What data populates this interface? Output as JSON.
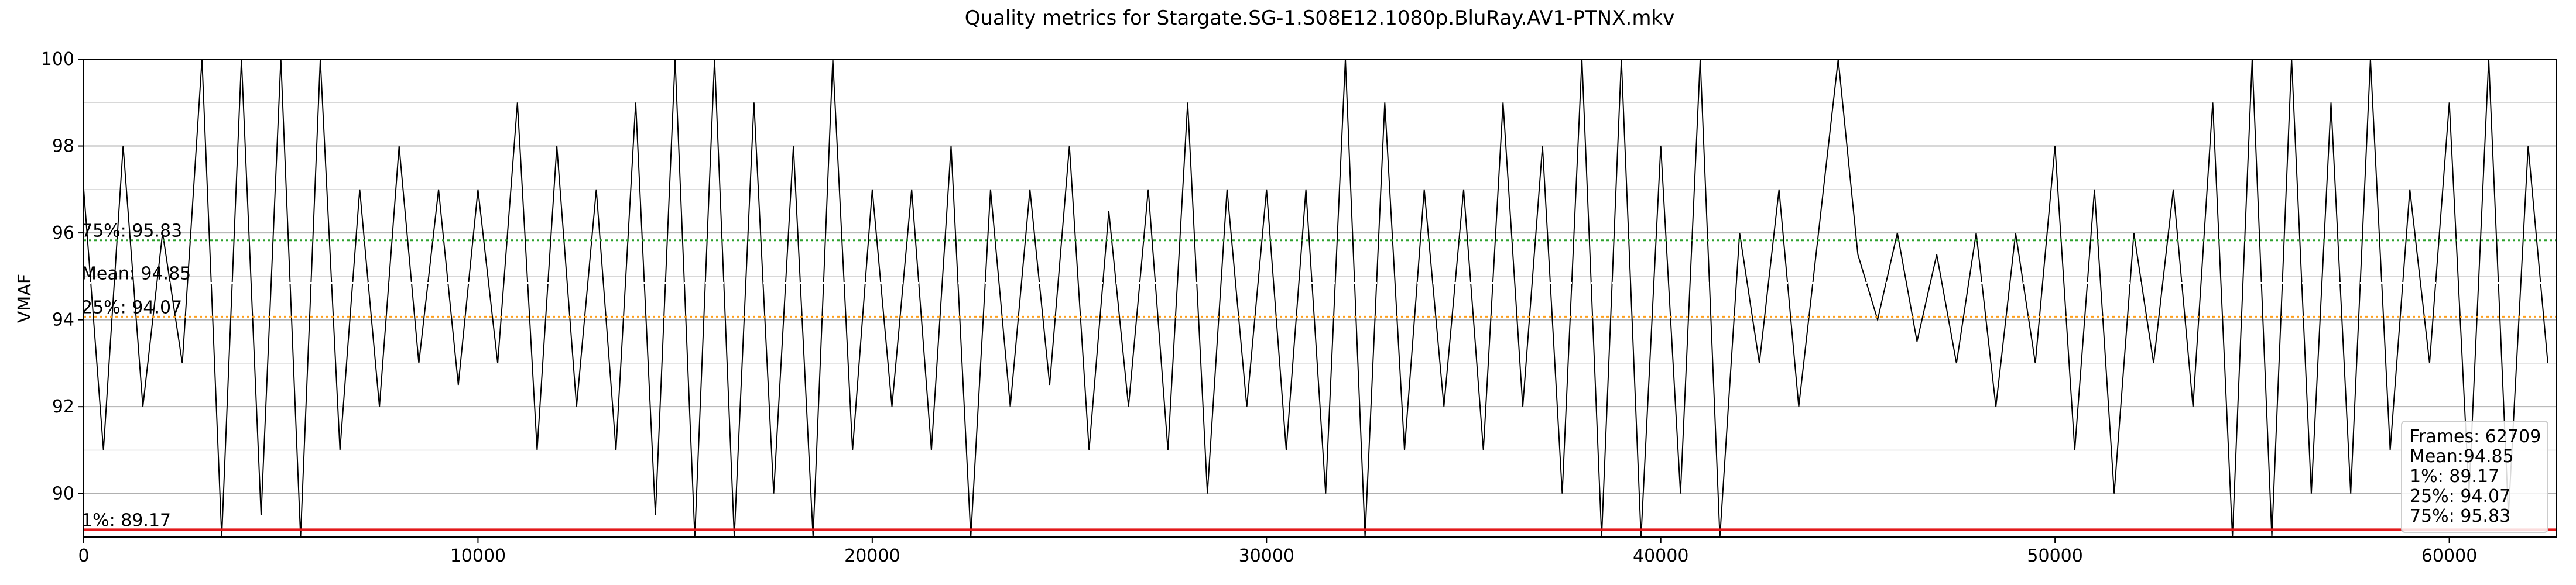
{
  "chart_data": {
    "type": "line",
    "title": "Quality metrics for Stargate.SG-1.S08E12.1080p.BluRay.AV1-PTNX.mkv",
    "y_label": "VMAF",
    "color": "#000000",
    "x": [
      0,
      500,
      1000,
      1500,
      2000,
      2500,
      3000,
      3500,
      4000,
      4500,
      5000,
      5500,
      6000,
      6500,
      7000,
      7500,
      8000,
      8500,
      9000,
      9500,
      10000,
      10500,
      11000,
      11500,
      12000,
      12500,
      13000,
      13500,
      14000,
      14500,
      15000,
      15500,
      16000,
      16500,
      17000,
      17500,
      18000,
      18500,
      19000,
      19500,
      20000,
      20500,
      21000,
      21500,
      22000,
      22500,
      23000,
      23500,
      24000,
      24500,
      25000,
      25500,
      26000,
      26500,
      27000,
      27500,
      28000,
      28500,
      29000,
      29500,
      30000,
      30500,
      31000,
      31500,
      32000,
      32500,
      33000,
      33500,
      34000,
      34500,
      35000,
      35500,
      36000,
      36500,
      37000,
      37500,
      38000,
      38500,
      39000,
      39500,
      40000,
      40500,
      41000,
      41500,
      42000,
      42500,
      43000,
      43500,
      44000,
      44500,
      45000,
      45500,
      46000,
      46500,
      47000,
      47500,
      48000,
      48500,
      49000,
      49500,
      50000,
      50500,
      51000,
      51500,
      52000,
      52500,
      53000,
      53500,
      54000,
      54500,
      55000,
      55500,
      56000,
      56500,
      57000,
      57500,
      58000,
      58500,
      59000,
      59500,
      60000,
      60500,
      61000,
      61500,
      62000,
      62500
    ],
    "values": [
      97,
      91,
      98,
      92,
      96,
      93,
      100,
      89,
      100,
      89.5,
      100,
      89,
      100,
      91,
      97,
      92,
      98,
      93,
      97,
      92.5,
      97,
      93,
      99,
      91,
      98,
      92,
      97,
      91,
      99,
      89.5,
      100,
      89,
      100,
      89,
      99,
      90,
      98,
      89,
      100,
      91,
      97,
      92,
      97,
      91,
      98,
      89,
      97,
      92,
      97,
      92.5,
      98,
      91,
      96.5,
      92,
      97,
      91,
      99,
      90,
      97,
      92,
      97,
      91,
      97,
      90,
      100,
      89,
      99,
      91,
      97,
      92,
      97,
      91,
      99,
      92,
      98,
      90,
      100,
      89,
      100,
      89,
      98,
      90,
      100,
      89,
      96,
      93,
      97,
      92,
      96,
      100,
      95.5,
      94,
      96,
      93.5,
      95.5,
      93,
      96,
      92,
      96,
      93,
      98,
      91,
      97,
      90,
      96,
      93,
      97,
      92,
      99,
      89,
      100,
      89,
      100,
      90,
      99,
      90,
      100,
      91,
      97,
      93,
      99,
      90,
      100,
      89.5,
      98,
      93
    ],
    "xlim": [
      0,
      62709
    ],
    "ylim": [
      89.0,
      100
    ],
    "xticks": [
      0,
      10000,
      20000,
      30000,
      40000,
      50000,
      60000
    ],
    "yticks": [
      90,
      92,
      94,
      96,
      98,
      100
    ],
    "yminor_ticks": [
      91,
      93,
      95,
      97,
      99
    ],
    "grid": true,
    "hlines": [
      {
        "label": "75%: 95.83",
        "value": 95.83,
        "color": "#2ca02c",
        "style": "dotted"
      },
      {
        "label": "Mean: 94.85",
        "value": 94.85,
        "color": "#ffffff",
        "style": "dotted"
      },
      {
        "label": "25%: 94.07",
        "value": 94.07,
        "color": "#ff9f1a",
        "style": "dotted"
      },
      {
        "label": "1%: 89.17",
        "value": 89.17,
        "color": "#e31a1c",
        "style": "solid"
      }
    ],
    "stats_box": [
      "Frames: 62709",
      "Mean:94.85",
      "1%: 89.17",
      "25%: 94.07",
      "75%: 95.83"
    ]
  }
}
